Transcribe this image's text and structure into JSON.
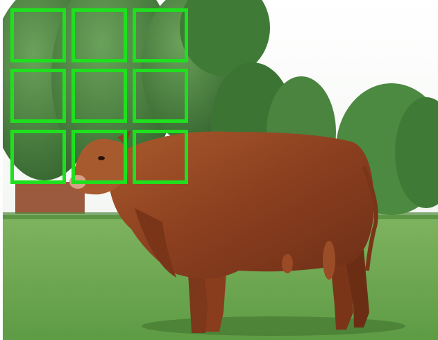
{
  "image": {
    "subject": "bull",
    "colors": {
      "sky": "#ffffff",
      "grass": "#69a84c",
      "trees": "#3f7a36",
      "bull": "#8b3f1f",
      "grid_box": "#1ee01e"
    }
  },
  "grid": {
    "rows": 3,
    "columns": 3
  }
}
